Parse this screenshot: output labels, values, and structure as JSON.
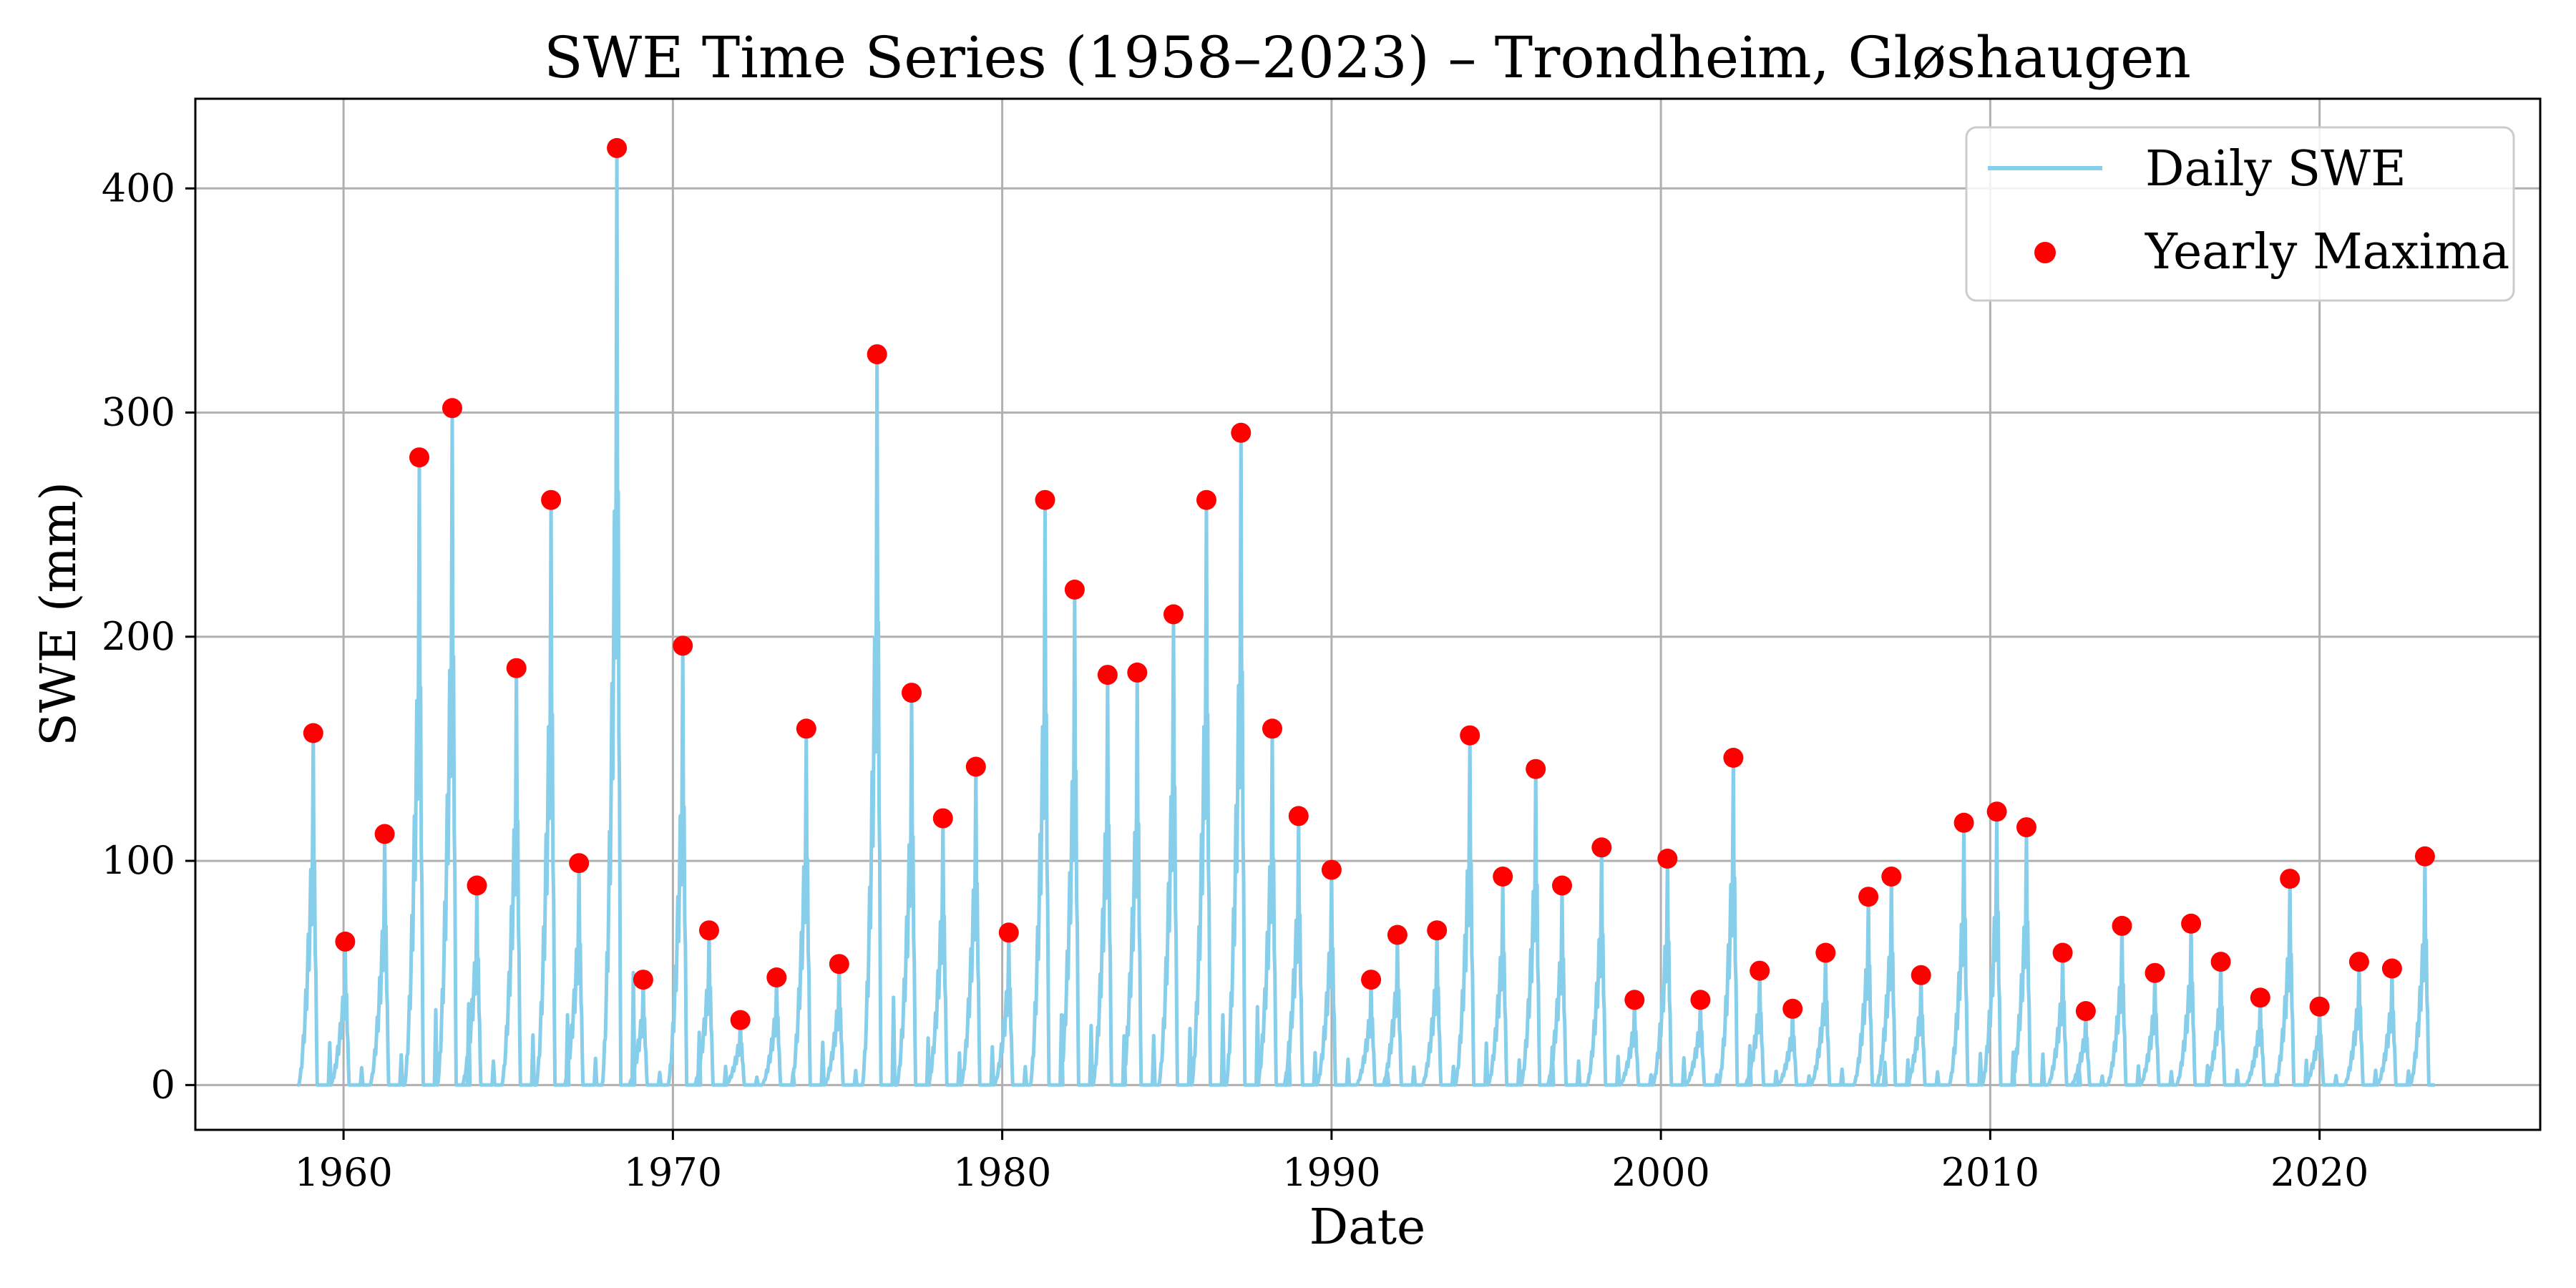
{
  "chart_data": {
    "type": "line",
    "title": "SWE Time Series (1958–2023) – Trondheim, Gløshaugen",
    "xlabel": "Date",
    "ylabel": "SWE (mm)",
    "xlim": [
      1955.5,
      2026.7
    ],
    "ylim": [
      -20,
      440
    ],
    "x_ticks": [
      1960,
      1970,
      1980,
      1990,
      2000,
      2010,
      2020
    ],
    "y_ticks": [
      0,
      100,
      200,
      300,
      400
    ],
    "grid": true,
    "legend_position": "top-right",
    "series": [
      {
        "name": "Daily SWE",
        "style": "line",
        "color": "#87ceeb",
        "x_range": [
          1958.6,
          2023.5
        ]
      },
      {
        "name": "Yearly Maxima",
        "style": "scatter",
        "color": "#ff0000",
        "points": [
          [
            1959.08,
            157
          ],
          [
            1960.05,
            64
          ],
          [
            1961.25,
            112
          ],
          [
            1962.3,
            280
          ],
          [
            1963.3,
            302
          ],
          [
            1964.05,
            89
          ],
          [
            1965.25,
            186
          ],
          [
            1966.3,
            261
          ],
          [
            1967.15,
            99
          ],
          [
            1968.3,
            418
          ],
          [
            1969.1,
            47
          ],
          [
            1970.3,
            196
          ],
          [
            1971.1,
            69
          ],
          [
            1972.05,
            29
          ],
          [
            1973.15,
            48
          ],
          [
            1974.05,
            159
          ],
          [
            1975.05,
            54
          ],
          [
            1976.2,
            326
          ],
          [
            1977.25,
            175
          ],
          [
            1978.2,
            119
          ],
          [
            1979.2,
            142
          ],
          [
            1980.2,
            68
          ],
          [
            1981.3,
            261
          ],
          [
            1982.2,
            221
          ],
          [
            1983.2,
            183
          ],
          [
            1984.1,
            184
          ],
          [
            1985.2,
            210
          ],
          [
            1986.2,
            261
          ],
          [
            1987.25,
            291
          ],
          [
            1988.2,
            159
          ],
          [
            1989.0,
            120
          ],
          [
            1990.0,
            96
          ],
          [
            1991.2,
            47
          ],
          [
            1992.0,
            67
          ],
          [
            1993.2,
            69
          ],
          [
            1994.2,
            156
          ],
          [
            1995.2,
            93
          ],
          [
            1996.2,
            141
          ],
          [
            1997.0,
            89
          ],
          [
            1998.2,
            106
          ],
          [
            1999.2,
            38
          ],
          [
            2000.2,
            101
          ],
          [
            2001.2,
            38
          ],
          [
            2002.2,
            146
          ],
          [
            2003.0,
            51
          ],
          [
            2004.0,
            34
          ],
          [
            2005.0,
            59
          ],
          [
            2006.3,
            84
          ],
          [
            2007.0,
            93
          ],
          [
            2007.9,
            49
          ],
          [
            2009.2,
            117
          ],
          [
            2010.2,
            122
          ],
          [
            2011.1,
            115
          ],
          [
            2012.2,
            59
          ],
          [
            2012.9,
            33
          ],
          [
            2014.0,
            71
          ],
          [
            2015.0,
            50
          ],
          [
            2016.1,
            72
          ],
          [
            2017.0,
            55
          ],
          [
            2018.2,
            39
          ],
          [
            2019.1,
            92
          ],
          [
            2020.0,
            35
          ],
          [
            2021.2,
            55
          ],
          [
            2022.2,
            52
          ],
          [
            2023.2,
            102
          ]
        ]
      }
    ]
  }
}
